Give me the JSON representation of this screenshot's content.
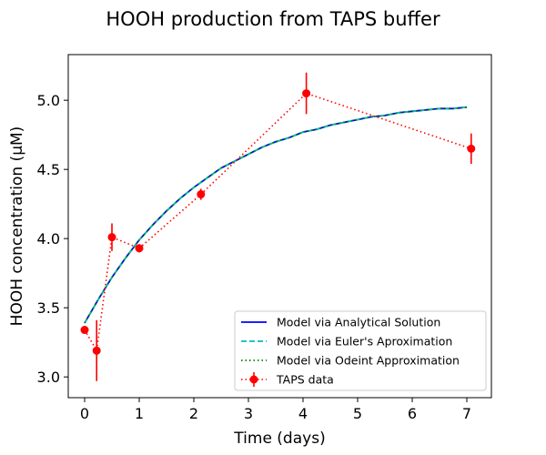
{
  "chart_data": {
    "type": "line",
    "title": "HOOH production from TAPS buffer",
    "xlabel": "Time (days)",
    "ylabel": "HOOH concentration (µM)",
    "xlim": [
      -0.3,
      7.45
    ],
    "ylim": [
      2.85,
      5.33
    ],
    "xticks": [
      0,
      1,
      2,
      3,
      4,
      5,
      6,
      7
    ],
    "xtick_labels": [
      "0",
      "1",
      "2",
      "3",
      "4",
      "5",
      "6",
      "7"
    ],
    "yticks": [
      3.0,
      3.5,
      4.0,
      4.5,
      5.0
    ],
    "ytick_labels": [
      "3.0",
      "3.5",
      "4.0",
      "4.5",
      "5.0"
    ],
    "grid": false,
    "legend_position": "lower-right",
    "series": [
      {
        "name": "Model via Analytical Solution",
        "style": "solid",
        "color": "#0000ff",
        "x": [
          0,
          0.25,
          0.5,
          0.75,
          1,
          1.25,
          1.5,
          1.75,
          2,
          2.25,
          2.5,
          2.75,
          3,
          3.25,
          3.5,
          3.75,
          4,
          4.25,
          4.5,
          4.75,
          5,
          5.25,
          5.5,
          5.75,
          6,
          6.25,
          6.5,
          6.75,
          7
        ],
        "y": [
          3.39,
          3.56,
          3.72,
          3.86,
          3.99,
          4.1,
          4.2,
          4.29,
          4.37,
          4.44,
          4.51,
          4.56,
          4.61,
          4.66,
          4.7,
          4.73,
          4.77,
          4.79,
          4.82,
          4.84,
          4.86,
          4.88,
          4.89,
          4.91,
          4.92,
          4.93,
          4.94,
          4.94,
          4.95
        ]
      },
      {
        "name": "Model via Euler's Aproximation",
        "style": "dashed",
        "color": "#00bfbf",
        "x": [
          0,
          0.25,
          0.5,
          0.75,
          1,
          1.25,
          1.5,
          1.75,
          2,
          2.25,
          2.5,
          2.75,
          3,
          3.25,
          3.5,
          3.75,
          4,
          4.25,
          4.5,
          4.75,
          5,
          5.25,
          5.5,
          5.75,
          6,
          6.25,
          6.5,
          6.75,
          7
        ],
        "y": [
          3.39,
          3.56,
          3.72,
          3.86,
          3.99,
          4.1,
          4.2,
          4.29,
          4.37,
          4.44,
          4.51,
          4.56,
          4.61,
          4.66,
          4.7,
          4.73,
          4.77,
          4.79,
          4.82,
          4.84,
          4.86,
          4.88,
          4.89,
          4.91,
          4.92,
          4.93,
          4.94,
          4.94,
          4.95
        ]
      },
      {
        "name": "Model via Odeint Approximation",
        "style": "dotted",
        "color": "#008000",
        "x": [
          0,
          0.25,
          0.5,
          0.75,
          1,
          1.25,
          1.5,
          1.75,
          2,
          2.25,
          2.5,
          2.75,
          3,
          3.25,
          3.5,
          3.75,
          4,
          4.25,
          4.5,
          4.75,
          5,
          5.25,
          5.5,
          5.75,
          6,
          6.25,
          6.5,
          6.75,
          7
        ],
        "y": [
          3.39,
          3.56,
          3.72,
          3.86,
          3.99,
          4.1,
          4.2,
          4.29,
          4.37,
          4.44,
          4.51,
          4.56,
          4.61,
          4.66,
          4.7,
          4.73,
          4.77,
          4.79,
          4.82,
          4.84,
          4.86,
          4.88,
          4.89,
          4.91,
          4.92,
          4.93,
          4.94,
          4.94,
          4.95
        ]
      },
      {
        "name": "TAPS data",
        "style": "dotted-markers",
        "color": "#ff0000",
        "x": [
          0,
          0.22,
          0.5,
          1.0,
          2.13,
          4.06,
          7.08
        ],
        "y": [
          3.34,
          3.19,
          4.01,
          3.93,
          4.32,
          5.05,
          4.65
        ],
        "yerr": [
          0.02,
          0.22,
          0.1,
          0.03,
          0.04,
          0.15,
          0.11
        ]
      }
    ]
  }
}
